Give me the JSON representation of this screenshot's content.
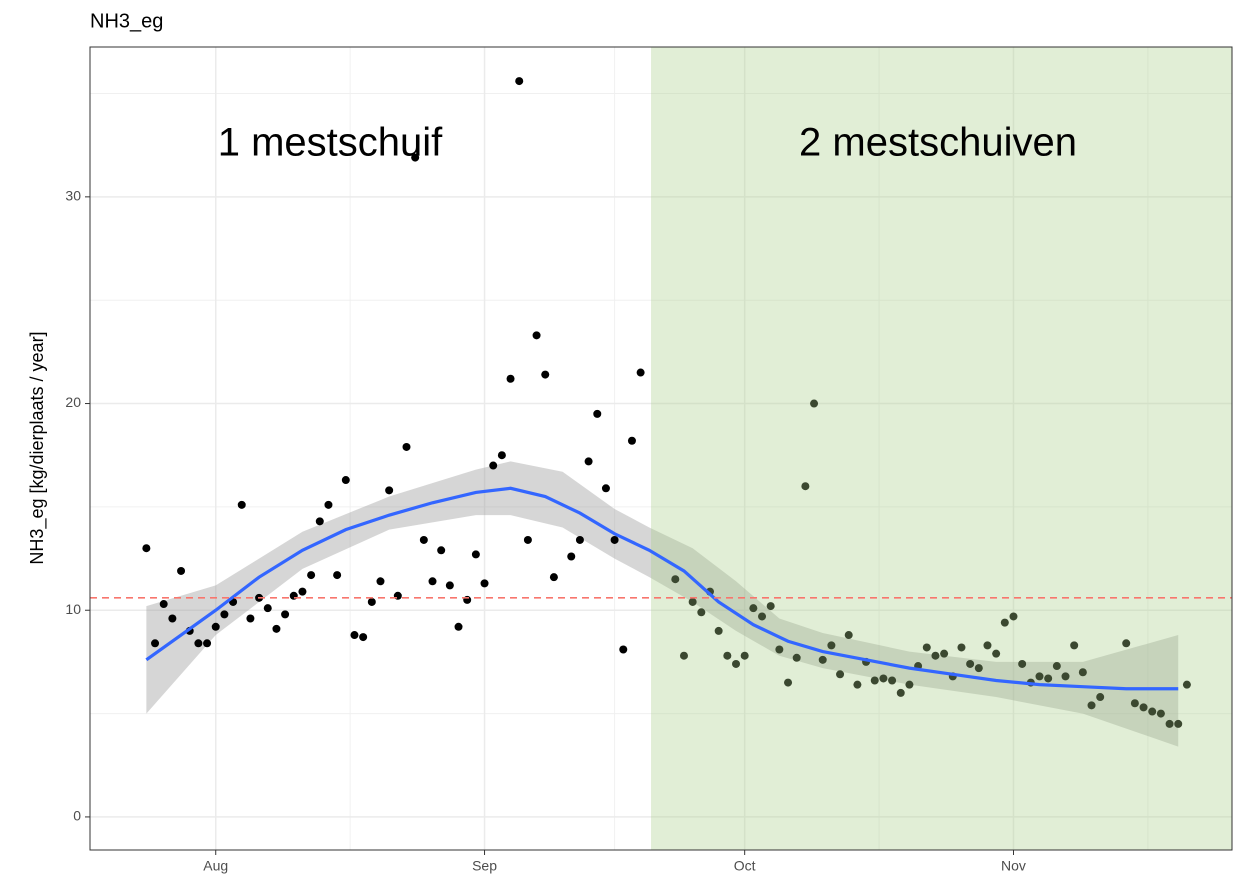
{
  "chart_data": {
    "type": "scatter",
    "title": "NH3_eg",
    "y_label": "NH3_eg [kg/dierplaats / year]",
    "annotations": [
      "1 mestschuif",
      "2 mestschuiven"
    ],
    "xlim": [
      -14.5,
      117.2
    ],
    "xticks": [
      {
        "value": 0,
        "label": "Aug"
      },
      {
        "value": 31,
        "label": "Sep"
      },
      {
        "value": 61,
        "label": "Oct"
      },
      {
        "value": 92,
        "label": "Nov"
      }
    ],
    "ylim": [
      -1.6,
      37.25
    ],
    "yticks": [
      0,
      10,
      20,
      30
    ],
    "grid": true,
    "point_color": "#000000",
    "x": [
      -8,
      -7,
      -6,
      -5,
      -4,
      -3,
      -2,
      -1,
      0,
      1,
      2,
      3,
      4,
      5,
      6,
      7,
      8,
      9,
      10,
      11,
      12,
      13,
      14,
      15,
      16,
      17,
      18,
      19,
      20,
      21,
      22,
      23,
      24,
      25,
      26,
      27,
      28,
      29,
      30,
      31,
      32,
      33,
      34,
      35,
      36,
      37,
      38,
      39,
      41,
      42,
      43,
      44,
      45,
      46,
      47,
      48,
      49,
      53,
      54,
      55,
      56,
      57,
      58,
      59,
      60,
      61,
      62,
      63,
      64,
      65,
      66,
      67,
      68,
      69,
      70,
      71,
      72,
      73,
      74,
      75,
      76,
      77,
      78,
      79,
      80,
      81,
      82,
      83,
      84,
      85,
      86,
      87,
      88,
      89,
      90,
      91,
      92,
      93,
      94,
      95,
      96,
      97,
      98,
      99,
      100,
      101,
      102,
      105,
      106,
      107,
      108,
      109,
      110,
      111,
      112
    ],
    "values": [
      13.0,
      8.4,
      10.3,
      9.6,
      11.9,
      9.0,
      8.4,
      8.4,
      9.2,
      9.8,
      10.4,
      15.1,
      9.6,
      10.6,
      10.1,
      9.1,
      9.8,
      10.7,
      10.9,
      11.7,
      14.3,
      15.1,
      11.7,
      16.3,
      8.8,
      8.7,
      10.4,
      11.4,
      15.8,
      10.7,
      17.9,
      31.9,
      13.4,
      11.4,
      12.9,
      11.2,
      9.2,
      10.5,
      12.7,
      11.3,
      17.0,
      17.5,
      21.2,
      35.6,
      13.4,
      23.3,
      21.4,
      11.6,
      12.6,
      13.4,
      17.2,
      19.5,
      15.9,
      13.4,
      8.1,
      18.2,
      21.5,
      11.5,
      7.8,
      10.4,
      9.9,
      10.9,
      9.0,
      7.8,
      7.4,
      7.8,
      10.1,
      9.7,
      10.2,
      8.1,
      6.5,
      7.7,
      16.0,
      20.0,
      7.6,
      8.3,
      6.9,
      8.8,
      6.4,
      7.5,
      6.6,
      6.7,
      6.6,
      6.0,
      6.4,
      7.3,
      8.2,
      7.8,
      7.9,
      6.8,
      8.2,
      7.4,
      7.2,
      8.3,
      7.9,
      9.4,
      9.7,
      7.4,
      6.5,
      6.8,
      6.7,
      7.3,
      6.8,
      8.3,
      7.0,
      5.4,
      5.8,
      8.4,
      5.5,
      5.3,
      5.1,
      5.0,
      4.5,
      4.5,
      6.4
    ],
    "smooth": {
      "color": "#3366ff",
      "x": [
        -8,
        -4,
        0,
        5,
        10,
        15,
        20,
        25,
        30,
        34,
        38,
        42,
        46,
        50,
        54,
        58,
        62,
        66,
        70,
        75,
        80,
        85,
        90,
        95,
        100,
        105,
        111
      ],
      "values": [
        7.6,
        8.8,
        10.0,
        11.6,
        12.9,
        13.9,
        14.6,
        15.2,
        15.7,
        15.9,
        15.5,
        14.7,
        13.7,
        12.9,
        11.9,
        10.4,
        9.3,
        8.5,
        8.0,
        7.6,
        7.2,
        6.9,
        6.6,
        6.4,
        6.3,
        6.2,
        6.2
      ]
    },
    "ribbon": {
      "color": "#999999",
      "x": [
        -8,
        0,
        10,
        20,
        30,
        34,
        40,
        46,
        50,
        55,
        60,
        65,
        70,
        80,
        90,
        100,
        111
      ],
      "lower": [
        5.0,
        8.8,
        12.0,
        13.9,
        14.6,
        14.6,
        14.0,
        12.5,
        11.6,
        10.4,
        9.0,
        7.8,
        7.2,
        6.4,
        5.8,
        5.0,
        3.4
      ],
      "upper": [
        10.2,
        11.2,
        13.8,
        15.5,
        16.8,
        17.2,
        16.7,
        14.9,
        14.0,
        13.0,
        11.4,
        9.6,
        8.9,
        8.0,
        7.5,
        7.5,
        8.8
      ]
    },
    "shade_from": 50.2,
    "shade_color": "#a9cd8a",
    "hline": 10.6,
    "hline_color": "#f8766d"
  }
}
